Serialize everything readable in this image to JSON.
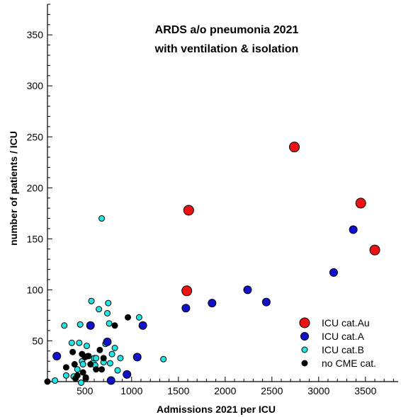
{
  "chart_data": {
    "type": "scatter",
    "title": [
      "ARDS a/o pneumonia 2021",
      "with ventilation & isolation"
    ],
    "xlabel": "Admissions 2021 per ICU",
    "ylabel": "number of patients / ICU",
    "xlim": [
      100,
      3850
    ],
    "ylim": [
      10,
      380
    ],
    "xticks": [
      500,
      1000,
      1500,
      2000,
      2500,
      3000,
      3500
    ],
    "yticks": [
      50,
      100,
      150,
      200,
      250,
      300,
      350
    ],
    "grid": false,
    "legend_position": "bottom-right",
    "series": [
      {
        "name": "ICU cat.Au",
        "color": "#ee1111",
        "marker_size": "large",
        "points": [
          [
            1590,
            99
          ],
          [
            1610,
            178
          ],
          [
            2740,
            240
          ],
          [
            3450,
            185
          ],
          [
            3600,
            139
          ]
        ]
      },
      {
        "name": "ICU cat.A",
        "color": "#1111cc",
        "marker_size": "medium",
        "points": [
          [
            200,
            35
          ],
          [
            560,
            65
          ],
          [
            740,
            49
          ],
          [
            780,
            11
          ],
          [
            950,
            17
          ],
          [
            1060,
            34
          ],
          [
            1120,
            65
          ],
          [
            1580,
            82
          ],
          [
            1860,
            87
          ],
          [
            2240,
            100
          ],
          [
            2440,
            88
          ],
          [
            3160,
            117
          ],
          [
            3370,
            159
          ]
        ]
      },
      {
        "name": "ICU cat.B",
        "color": "#22e6e6",
        "marker_size": "small",
        "points": [
          [
            180,
            11
          ],
          [
            280,
            65
          ],
          [
            300,
            16
          ],
          [
            360,
            48
          ],
          [
            380,
            15
          ],
          [
            420,
            22
          ],
          [
            440,
            48
          ],
          [
            450,
            66
          ],
          [
            470,
            30
          ],
          [
            480,
            27
          ],
          [
            510,
            13
          ],
          [
            520,
            45
          ],
          [
            540,
            35
          ],
          [
            570,
            89
          ],
          [
            590,
            29
          ],
          [
            600,
            33
          ],
          [
            610,
            26
          ],
          [
            620,
            33
          ],
          [
            650,
            81
          ],
          [
            680,
            170
          ],
          [
            700,
            29
          ],
          [
            720,
            47
          ],
          [
            740,
            77
          ],
          [
            750,
            87
          ],
          [
            760,
            67
          ],
          [
            770,
            28
          ],
          [
            790,
            37
          ],
          [
            820,
            43
          ],
          [
            850,
            21
          ],
          [
            880,
            33
          ],
          [
            1080,
            73
          ],
          [
            1340,
            32
          ],
          [
            460,
            9
          ]
        ]
      },
      {
        "name": "no CME cat.",
        "color": "#000000",
        "marker_size": "small",
        "points": [
          [
            100,
            10
          ],
          [
            300,
            24
          ],
          [
            370,
            39
          ],
          [
            390,
            27
          ],
          [
            400,
            13
          ],
          [
            420,
            16
          ],
          [
            470,
            37
          ],
          [
            480,
            19
          ],
          [
            500,
            34
          ],
          [
            510,
            14
          ],
          [
            530,
            35
          ],
          [
            560,
            27
          ],
          [
            620,
            22
          ],
          [
            660,
            41
          ],
          [
            680,
            22
          ],
          [
            700,
            33
          ],
          [
            820,
            65
          ],
          [
            960,
            73
          ]
        ]
      }
    ]
  }
}
